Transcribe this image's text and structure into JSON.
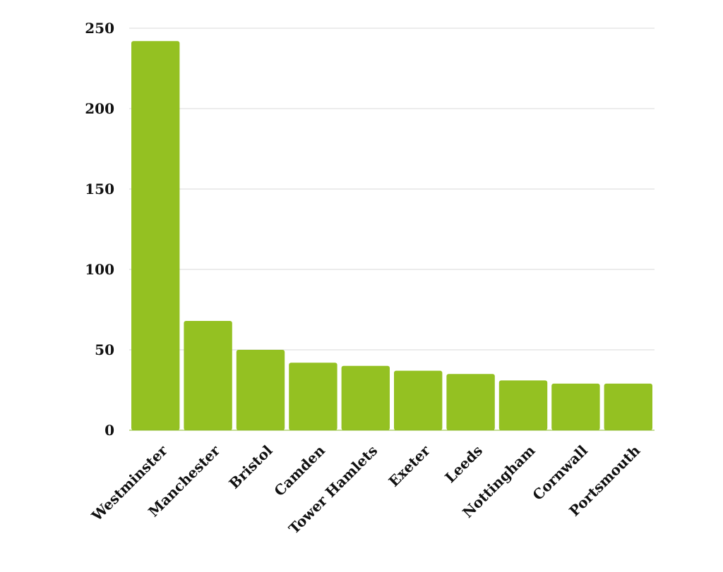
{
  "chart_data": {
    "type": "bar",
    "title": "",
    "xlabel": "",
    "ylabel": "",
    "categories": [
      "Westminster",
      "Manchester",
      "Bristol",
      "Camden",
      "Tower Hamlets",
      "Exeter",
      "Leeds",
      "Nottingham",
      "Cornwall",
      "Portsmouth"
    ],
    "values": [
      242,
      68,
      50,
      42,
      40,
      37,
      35,
      31,
      29,
      29
    ],
    "ylim": [
      0,
      250
    ],
    "yticks": [
      0,
      50,
      100,
      150,
      200,
      250
    ],
    "ytick_labels": [
      "0",
      "50",
      "100",
      "150",
      "200",
      "250"
    ],
    "grid": true,
    "legend": "none",
    "bar_color": "#94c122"
  }
}
